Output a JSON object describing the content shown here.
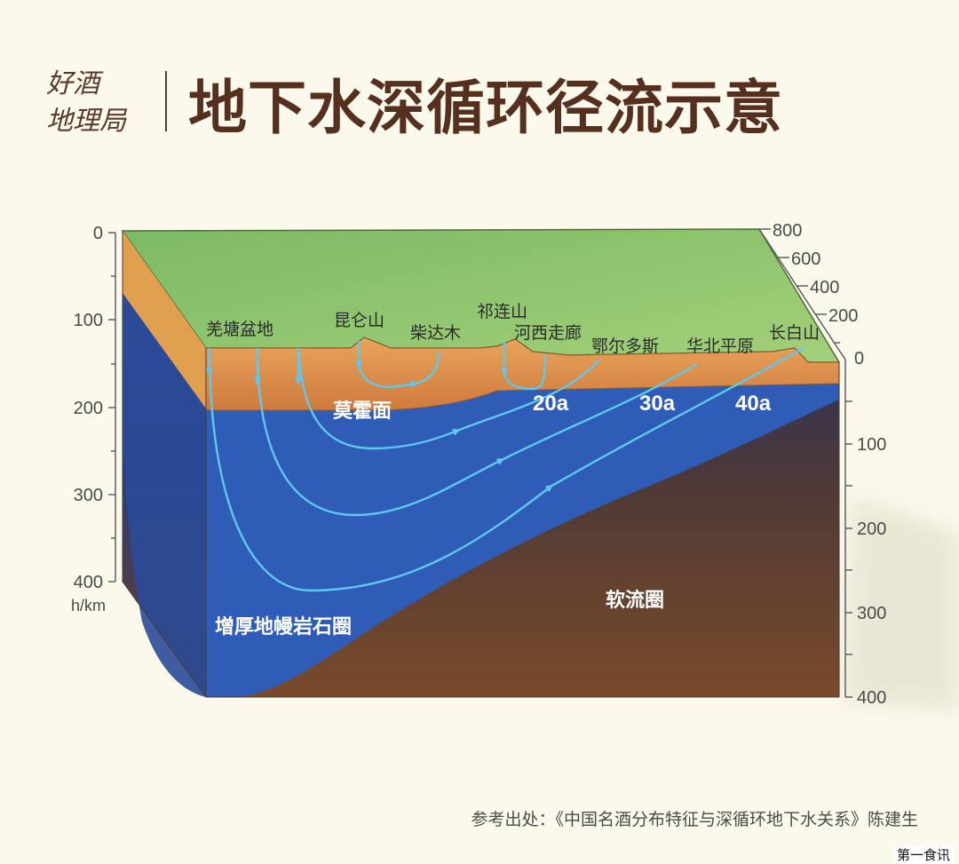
{
  "brand": {
    "line1": "好酒",
    "line2": "地理局"
  },
  "title": "地下水深循环径流示意",
  "left_axis": {
    "ticks": [
      "0",
      "100",
      "200",
      "300",
      "400"
    ],
    "unit": "h/km"
  },
  "right_axis_top": {
    "ticks": [
      "800",
      "600",
      "400",
      "200",
      "0"
    ]
  },
  "right_axis_bottom": {
    "ticks": [
      "100",
      "200",
      "300",
      "400"
    ]
  },
  "places": [
    "羌塘盆地",
    "昆仑山",
    "柴达木",
    "祁连山",
    "河西走廊",
    "鄂尔多斯",
    "华北平原",
    "长白山"
  ],
  "ages": [
    "20a",
    "30a",
    "40a"
  ],
  "layers": {
    "moho": "莫霍面",
    "lithosphere": "增厚地幔岩石圈",
    "asthenosphere": "软流圈"
  },
  "source": "参考出处：《中国名酒分布特征与深循环地下水关系》陈建生",
  "watermark": "第一食讯",
  "colors": {
    "grass": "#8dc46e",
    "crust": "#d98a4a",
    "mantle": "#2d55a8",
    "asthenosphere": "#5a3a28",
    "flow": "#5fc8f0",
    "title": "#56301f"
  }
}
